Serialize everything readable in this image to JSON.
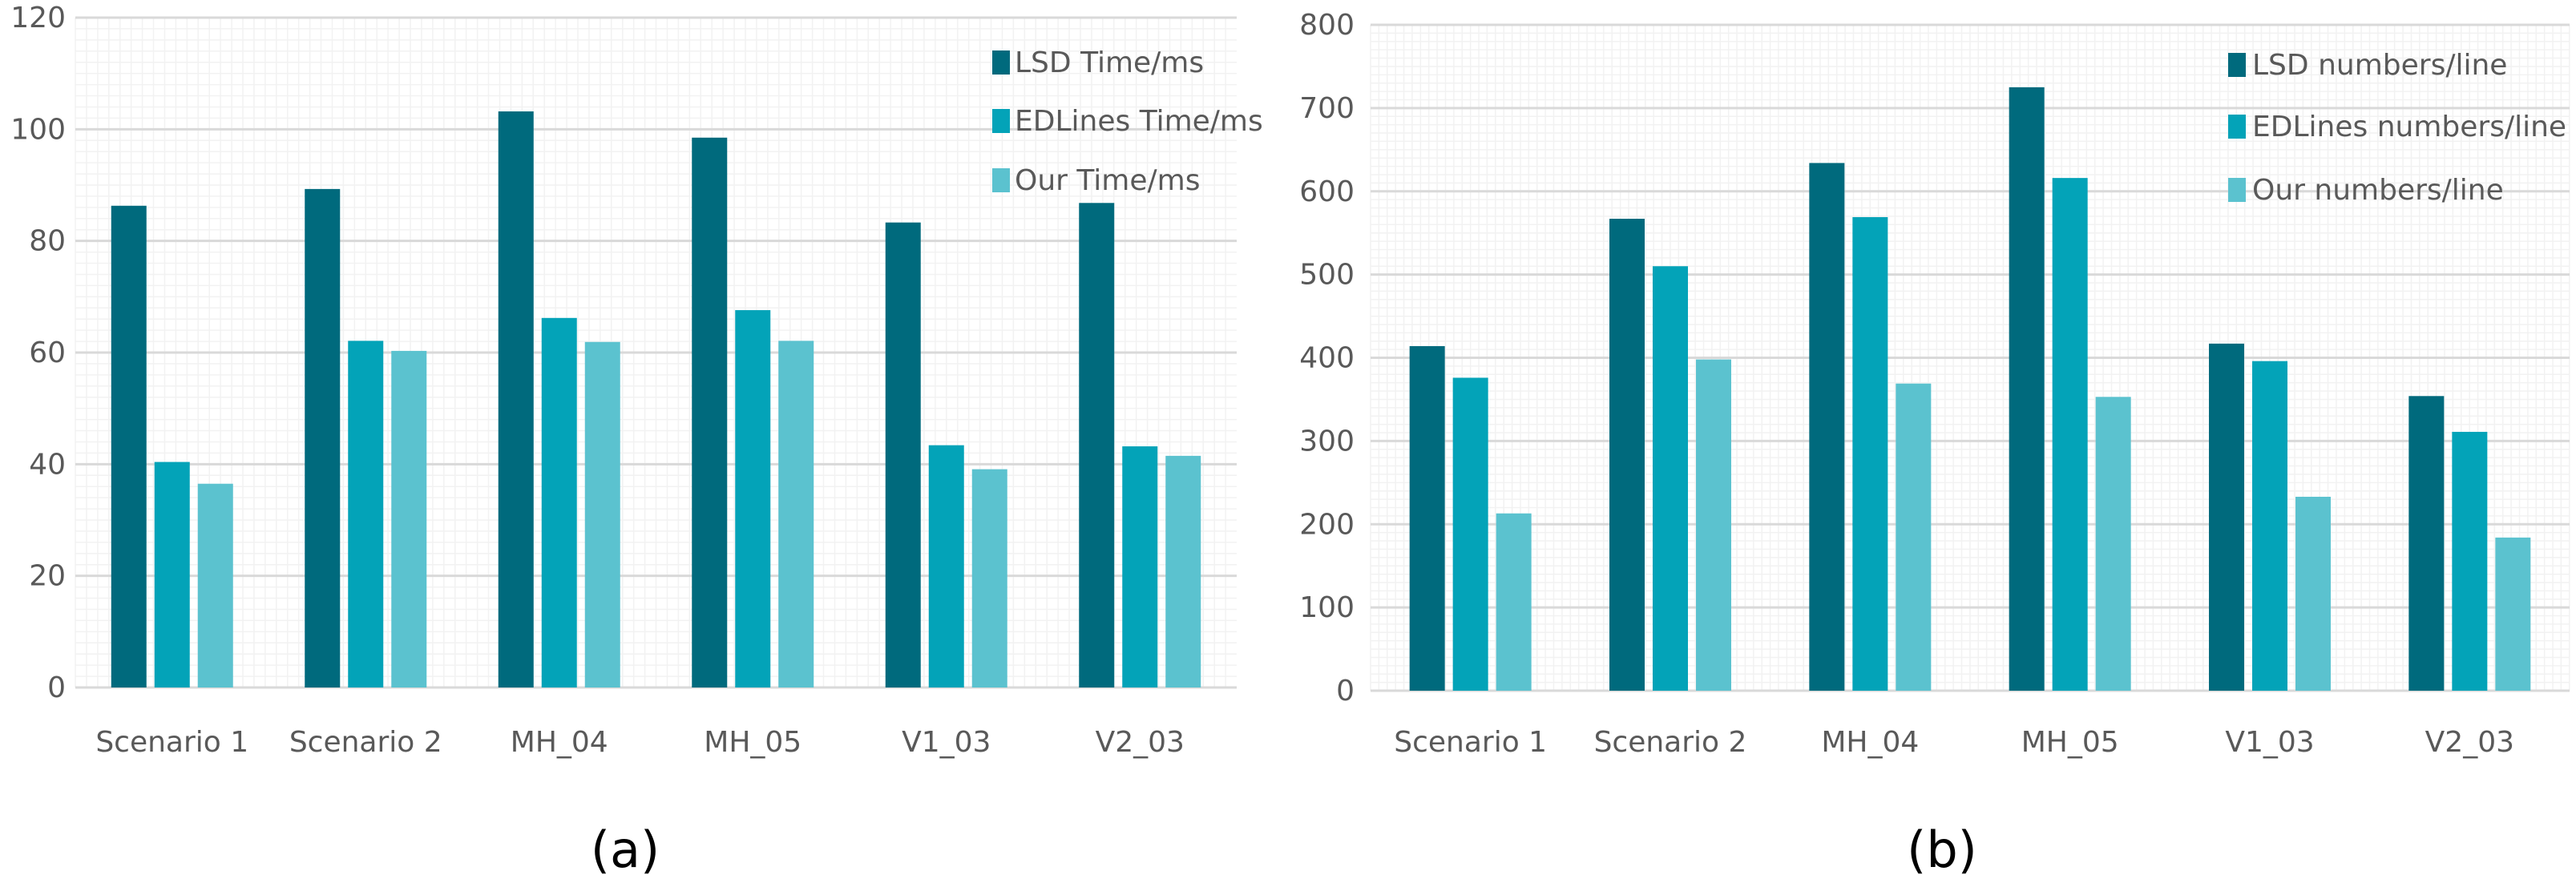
{
  "colors": {
    "lsd": "#006a7d",
    "edlines": "#03a3b8",
    "ours": "#5bc2cf",
    "grid_major": "#d9d9d9",
    "grid_minor": "#f2f2f2",
    "axis_text": "#595959",
    "caption_text": "#000000"
  },
  "chart_data": [
    {
      "type": "bar",
      "caption": "(a)",
      "categories": [
        "Scenario 1",
        "Scenario 2",
        "MH_04",
        "MH_05",
        "V1_03",
        "V2_03"
      ],
      "series": [
        {
          "name": "LSD Time/ms",
          "color_key": "lsd",
          "values": [
            86.3,
            89.3,
            103.2,
            98.5,
            83.3,
            86.8
          ]
        },
        {
          "name": "EDLines Time/ms",
          "color_key": "edlines",
          "values": [
            40.4,
            62.1,
            66.2,
            67.6,
            43.4,
            43.2
          ]
        },
        {
          "name": "Our Time/ms",
          "color_key": "ours",
          "values": [
            36.5,
            60.3,
            61.9,
            62.1,
            39.1,
            41.5
          ]
        }
      ],
      "yticks": [
        "0",
        "20",
        "40",
        "60",
        "80",
        "100",
        "120"
      ],
      "ylim": [
        0,
        120
      ],
      "legend_position": "top-right",
      "grid": true
    },
    {
      "type": "bar",
      "caption": "(b)",
      "categories": [
        "Scenario 1",
        "Scenario 2",
        "MH_04",
        "MH_05",
        "V1_03",
        "V2_03"
      ],
      "series": [
        {
          "name": "LSD numbers/line",
          "color_key": "lsd",
          "values": [
            414,
            567,
            634,
            725,
            417,
            354
          ]
        },
        {
          "name": "EDLines numbers/line",
          "color_key": "edlines",
          "values": [
            376,
            510,
            569,
            616,
            396,
            311
          ]
        },
        {
          "name": "Our numbers/line",
          "color_key": "ours",
          "values": [
            213,
            398,
            369,
            353,
            233,
            184
          ]
        }
      ],
      "yticks": [
        "0",
        "100",
        "200",
        "300",
        "400",
        "500",
        "600",
        "700",
        "800"
      ],
      "ylim": [
        0,
        800
      ],
      "legend_position": "top-right",
      "grid": true
    }
  ]
}
